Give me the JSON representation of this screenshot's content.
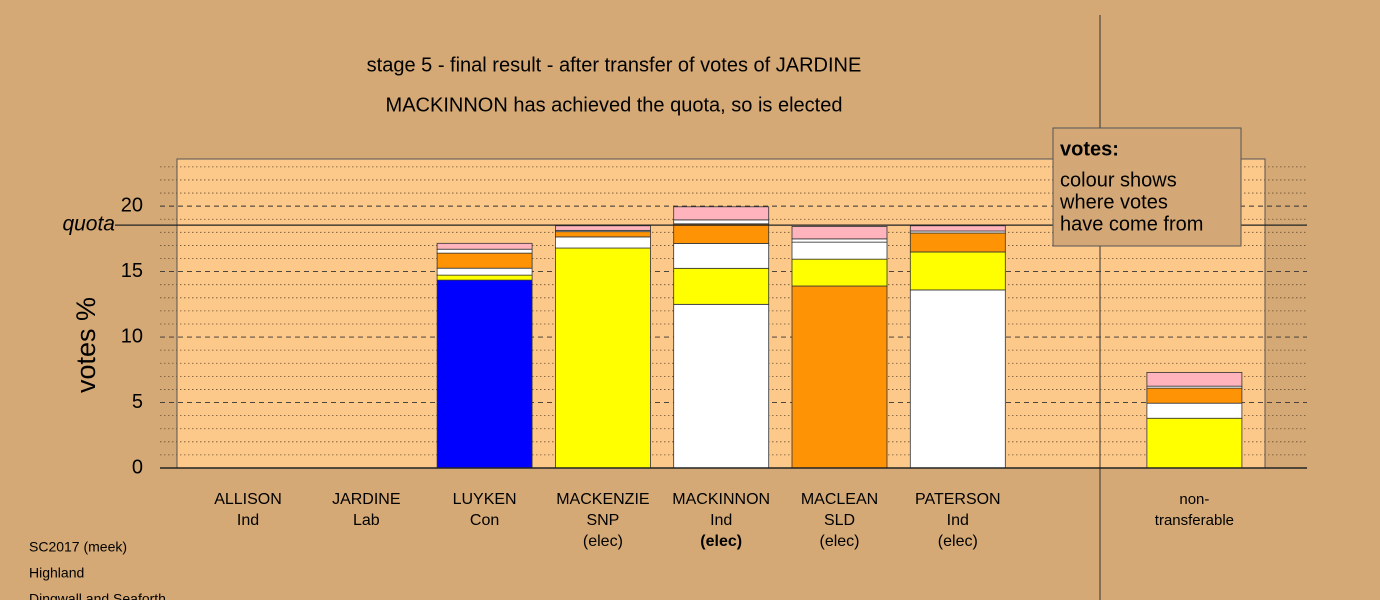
{
  "chart_data": {
    "type": "stacked-bar",
    "title": "stage 5 - final result - after transfer of votes of JARDINE",
    "subtitle": "MACKINNON has achieved the quota, so is elected",
    "ylabel": "votes %",
    "categories": [
      [
        "ALLISON",
        "Ind"
      ],
      [
        "JARDINE",
        "Lab"
      ],
      [
        "LUYKEN",
        "Con"
      ],
      [
        "MACKENZIE",
        "SNP"
      ],
      [
        "MACKINNON",
        "Ind"
      ],
      [
        "MACLEAN",
        "SLD"
      ],
      [
        "PATERSON",
        "Ind"
      ],
      [
        "non-",
        "transferable"
      ]
    ],
    "status": [
      null,
      null,
      null,
      "(elec)",
      "(elec)",
      "(elec)",
      "(elec)",
      null
    ],
    "highlight": 4,
    "series": [
      {
        "color": "#0000ff",
        "values": [
          0,
          0,
          14.35,
          0,
          0,
          0,
          0,
          0
        ]
      },
      {
        "color": "#ff9306",
        "values": [
          0,
          0,
          0,
          0,
          0,
          13.9,
          0,
          0
        ]
      },
      {
        "color": "#ffffff",
        "values": [
          0,
          0,
          0,
          0,
          12.5,
          0,
          13.6,
          0
        ]
      },
      {
        "color": "#ffff00",
        "values": [
          0,
          0,
          0.38,
          16.8,
          2.75,
          2.05,
          2.9,
          3.8
        ]
      },
      {
        "color": "#ffffff",
        "values": [
          0,
          0,
          0.53,
          0.85,
          1.9,
          1.3,
          0,
          1.15
        ]
      },
      {
        "color": "#ff9306",
        "values": [
          0,
          0,
          1.15,
          0.4,
          1.5,
          0,
          1.45,
          1.15
        ]
      },
      {
        "color": "#ffffff",
        "values": [
          0,
          0,
          0.3,
          0.1,
          0.3,
          0.25,
          0.15,
          0.15
        ]
      },
      {
        "color": "#ffb3bd",
        "values": [
          0,
          0,
          0.45,
          0.35,
          1.0,
          0.95,
          0.4,
          1.05
        ]
      }
    ],
    "quota": 18.55,
    "quota_label": "quota",
    "ylim": [
      0,
      23.6
    ],
    "yticks": [
      0,
      5,
      10,
      15,
      20
    ],
    "yminor": [
      1,
      2,
      3,
      4,
      6,
      7,
      8,
      9,
      11,
      12,
      13,
      14,
      16,
      17,
      18,
      19,
      21,
      22,
      23
    ],
    "note": {
      "title": "votes:",
      "lines": [
        "colour shows",
        "where votes",
        "have come from"
      ]
    },
    "footer": [
      "SC2017 (meek)",
      "Highland",
      "Dingwall and Seaforth"
    ]
  }
}
